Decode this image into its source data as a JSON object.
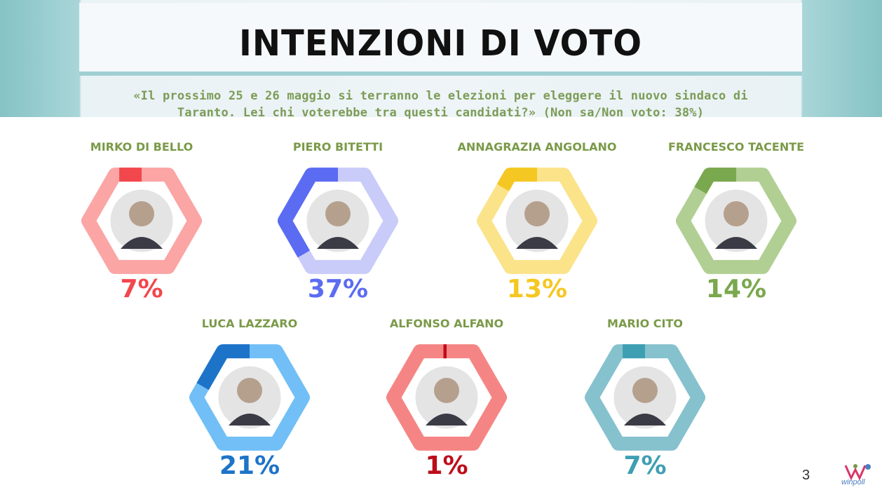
{
  "title": "INTENZIONI DI VOTO",
  "question": {
    "line1": "«Il prossimo 25 e 26 maggio si terranno le elezioni per eleggere il nuovo sindaco di",
    "line2": "Taranto. Lei chi voterebbe tra questi candidati?» (Non sa/Non voto: 38%)"
  },
  "page_number": "3",
  "logo_text": "winpoll",
  "chart_data": {
    "type": "donut",
    "title": "INTENZIONI DI VOTO",
    "unit": "%",
    "undecided": 38,
    "candidates": [
      {
        "name": "MIRKO DI BELLO",
        "value": 7,
        "label": "7%",
        "color": "#f2474c",
        "ring": "#fba5a5"
      },
      {
        "name": "PIERO BITETTI",
        "value": 37,
        "label": "37%",
        "color": "#5b6cf2",
        "ring": "#c9cbf9"
      },
      {
        "name": "ANNAGRAZIA ANGOLANO",
        "value": 13,
        "label": "13%",
        "color": "#f5c722",
        "ring": "#fbe38a"
      },
      {
        "name": "FRANCESCO TACENTE",
        "value": 14,
        "label": "14%",
        "color": "#7aa84e",
        "ring": "#b1cf93"
      },
      {
        "name": "LUCA LAZZARO",
        "value": 21,
        "label": "21%",
        "color": "#1d73c8",
        "ring": "#71bff6"
      },
      {
        "name": "ALFONSO ALFANO",
        "value": 1,
        "label": "1%",
        "color": "#bd0d1a",
        "ring": "#f58584"
      },
      {
        "name": "MARIO CITO",
        "value": 7,
        "label": "7%",
        "color": "#3e9fb2",
        "ring": "#86c1ce"
      }
    ]
  }
}
